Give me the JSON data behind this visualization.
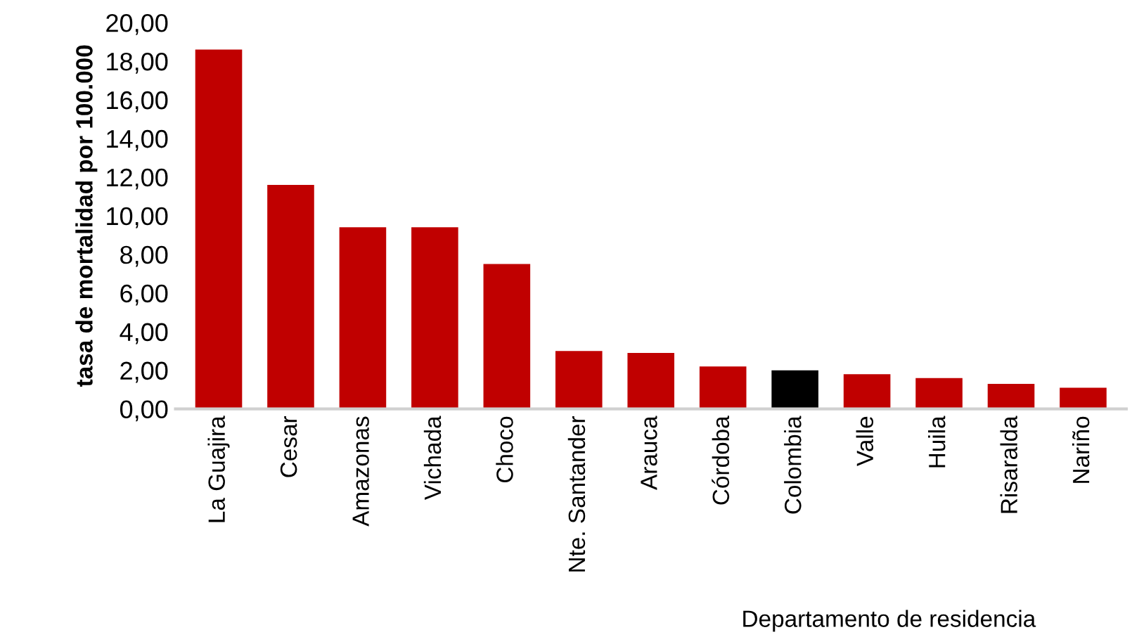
{
  "chart_data": {
    "type": "bar",
    "xlabel": "Departamento de residencia",
    "ylabel": "tasa de mortalidad por 100.000",
    "categories": [
      "La Guajira",
      "Cesar",
      "Amazonas",
      "Vichada",
      "Choco",
      "Nte. Santander",
      "Arauca",
      "Córdoba",
      "Colombia",
      "Valle",
      "Huila",
      "Risaralda",
      "Nariño"
    ],
    "values": [
      18.6,
      11.6,
      9.4,
      9.4,
      7.5,
      3.0,
      2.9,
      2.2,
      2.0,
      1.8,
      1.6,
      1.3,
      1.1
    ],
    "colors": [
      "#c00000",
      "#c00000",
      "#c00000",
      "#c00000",
      "#c00000",
      "#c00000",
      "#c00000",
      "#c00000",
      "#000000",
      "#c00000",
      "#c00000",
      "#c00000",
      "#c00000"
    ],
    "ylim": [
      0,
      20
    ],
    "yticks": [
      {
        "value": 0,
        "label": "0,00"
      },
      {
        "value": 2,
        "label": "2,00"
      },
      {
        "value": 4,
        "label": "4,00"
      },
      {
        "value": 6,
        "label": "6,00"
      },
      {
        "value": 8,
        "label": "8,00"
      },
      {
        "value": 10,
        "label": "10,00"
      },
      {
        "value": 12,
        "label": "12,00"
      },
      {
        "value": 14,
        "label": "14,00"
      },
      {
        "value": 16,
        "label": "16,00"
      },
      {
        "value": 18,
        "label": "18,00"
      },
      {
        "value": 20,
        "label": "20,00"
      }
    ],
    "grid": false,
    "legend": false
  }
}
